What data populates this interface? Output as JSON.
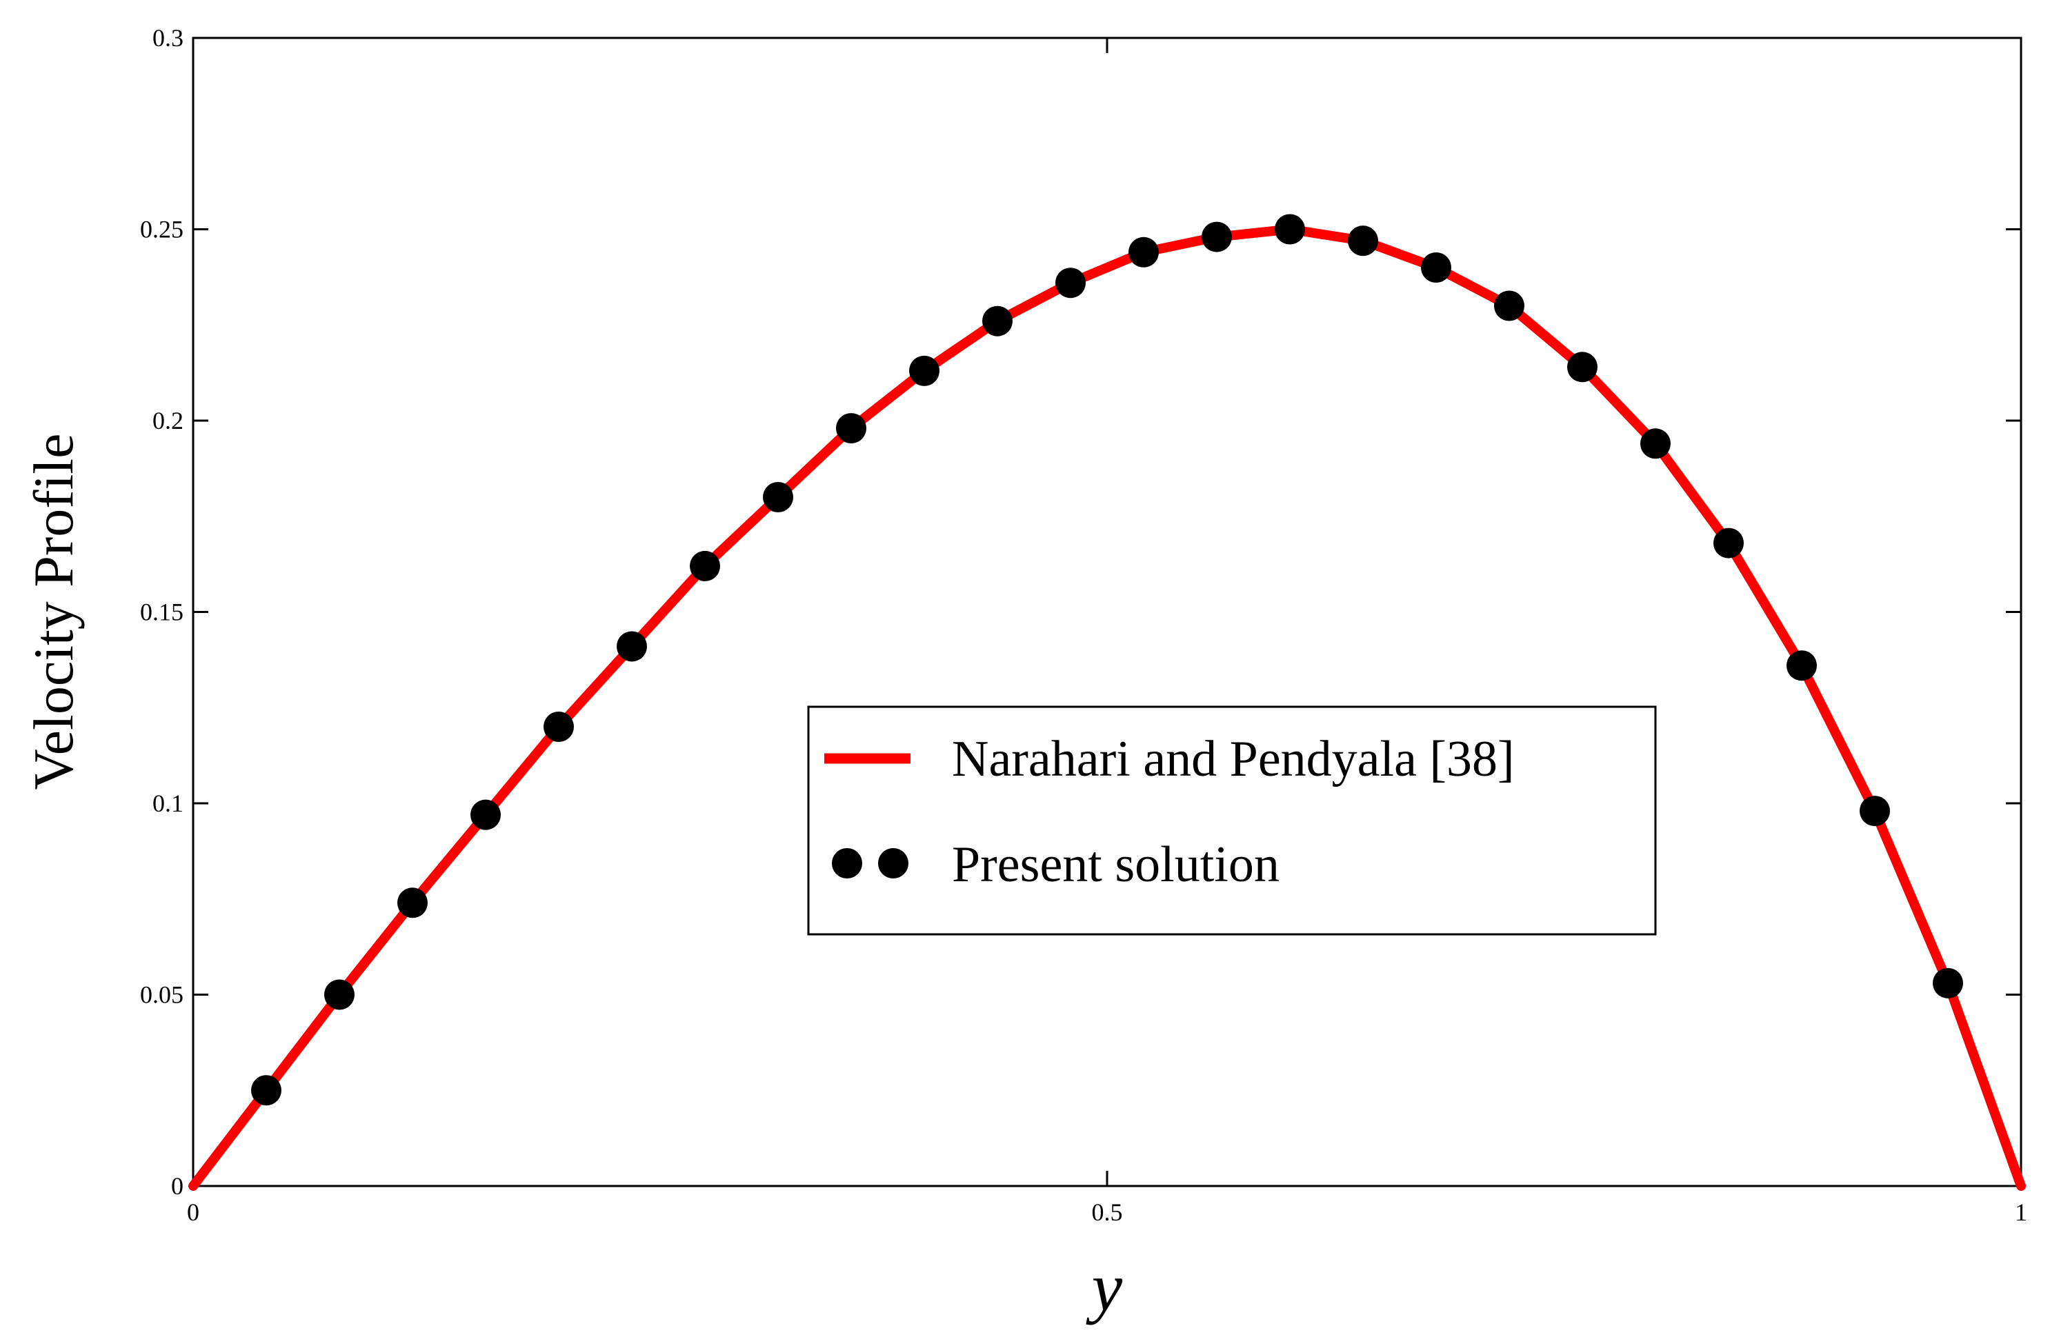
{
  "chart_data": {
    "type": "line",
    "xlabel": "y",
    "ylabel": "Velocity Profile",
    "xlim": [
      0,
      1
    ],
    "ylim": [
      0,
      0.3
    ],
    "x_ticks": [
      0,
      0.5,
      1
    ],
    "x_tick_labels": [
      "0",
      "0.5",
      "1"
    ],
    "y_ticks": [
      0,
      0.05,
      0.1,
      0.15,
      0.2,
      0.25,
      0.3
    ],
    "y_tick_labels": [
      "0",
      "0.05",
      "0.1",
      "0.15",
      "0.2",
      "0.25",
      "0.3"
    ],
    "grid": false,
    "legend_position": "center-right",
    "series": [
      {
        "name": "Narahari and Pendyala [38]",
        "style": "line",
        "color": "#ff0000",
        "x": [
          0,
          0.04,
          0.08,
          0.12,
          0.16,
          0.2,
          0.24,
          0.28,
          0.32,
          0.36,
          0.4,
          0.44,
          0.48,
          0.52,
          0.56,
          0.6,
          0.64,
          0.68,
          0.72,
          0.76,
          0.8,
          0.84,
          0.88,
          0.92,
          0.96,
          1
        ],
        "y": [
          0,
          0.025,
          0.05,
          0.074,
          0.097,
          0.12,
          0.141,
          0.162,
          0.18,
          0.198,
          0.213,
          0.226,
          0.236,
          0.244,
          0.248,
          0.25,
          0.247,
          0.24,
          0.23,
          0.214,
          0.194,
          0.168,
          0.136,
          0.098,
          0.053,
          0
        ]
      },
      {
        "name": "Present solution",
        "style": "markers",
        "color": "#000000",
        "x": [
          0.04,
          0.08,
          0.12,
          0.16,
          0.2,
          0.24,
          0.28,
          0.32,
          0.36,
          0.4,
          0.44,
          0.48,
          0.52,
          0.56,
          0.6,
          0.64,
          0.68,
          0.72,
          0.76,
          0.8,
          0.84,
          0.88,
          0.92,
          0.96
        ],
        "y": [
          0.025,
          0.05,
          0.074,
          0.097,
          0.12,
          0.141,
          0.162,
          0.18,
          0.198,
          0.213,
          0.226,
          0.236,
          0.244,
          0.248,
          0.25,
          0.247,
          0.24,
          0.23,
          0.214,
          0.194,
          0.168,
          0.136,
          0.098,
          0.053
        ]
      }
    ]
  }
}
